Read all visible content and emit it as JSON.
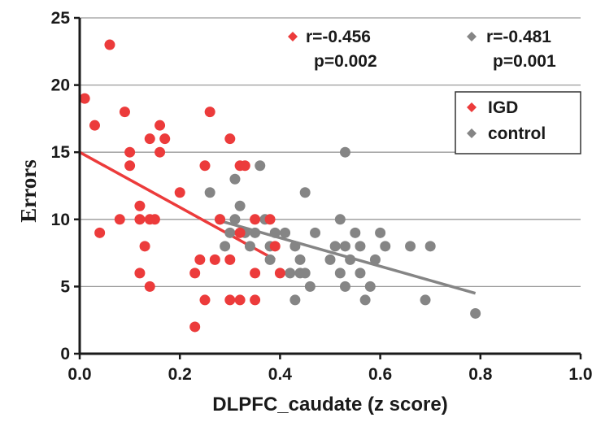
{
  "chart_data": {
    "type": "scatter",
    "xlabel": "DLPFC_caudate (z score)",
    "ylabel": "Errors",
    "xlim": [
      0,
      1.0
    ],
    "ylim": [
      0,
      25
    ],
    "x_ticks": [
      "0.0",
      "0.2",
      "0.4",
      "0.6",
      "0.8",
      "1.0"
    ],
    "y_ticks": [
      "0",
      "5",
      "10",
      "15",
      "20",
      "25"
    ],
    "grid": "horizontal",
    "legend_position": "top-right",
    "series": [
      {
        "name": "IGD",
        "color": "#ec3b3b",
        "points": [
          [
            0.01,
            19
          ],
          [
            0.03,
            17
          ],
          [
            0.04,
            9
          ],
          [
            0.06,
            23
          ],
          [
            0.08,
            10
          ],
          [
            0.09,
            18
          ],
          [
            0.1,
            15
          ],
          [
            0.1,
            14
          ],
          [
            0.12,
            11
          ],
          [
            0.12,
            10
          ],
          [
            0.12,
            6
          ],
          [
            0.13,
            8
          ],
          [
            0.14,
            16
          ],
          [
            0.14,
            10
          ],
          [
            0.14,
            5
          ],
          [
            0.15,
            10
          ],
          [
            0.16,
            17
          ],
          [
            0.16,
            15
          ],
          [
            0.17,
            16
          ],
          [
            0.2,
            12
          ],
          [
            0.23,
            2
          ],
          [
            0.23,
            6
          ],
          [
            0.24,
            7
          ],
          [
            0.25,
            14
          ],
          [
            0.25,
            4
          ],
          [
            0.26,
            18
          ],
          [
            0.27,
            7
          ],
          [
            0.28,
            10
          ],
          [
            0.3,
            16
          ],
          [
            0.3,
            7
          ],
          [
            0.3,
            4
          ],
          [
            0.32,
            4
          ],
          [
            0.32,
            9
          ],
          [
            0.32,
            14
          ],
          [
            0.33,
            14
          ],
          [
            0.35,
            10
          ],
          [
            0.35,
            6
          ],
          [
            0.35,
            4
          ],
          [
            0.38,
            10
          ],
          [
            0.39,
            8
          ],
          [
            0.4,
            6
          ]
        ],
        "fit": [
          [
            0.0,
            15
          ],
          [
            0.39,
            7
          ]
        ]
      },
      {
        "name": "control",
        "color": "#858585",
        "points": [
          [
            0.26,
            12
          ],
          [
            0.28,
            10
          ],
          [
            0.29,
            8
          ],
          [
            0.3,
            9
          ],
          [
            0.31,
            13
          ],
          [
            0.31,
            10
          ],
          [
            0.32,
            11
          ],
          [
            0.33,
            9
          ],
          [
            0.34,
            8
          ],
          [
            0.35,
            9
          ],
          [
            0.36,
            14
          ],
          [
            0.37,
            10
          ],
          [
            0.38,
            8
          ],
          [
            0.38,
            7
          ],
          [
            0.39,
            9
          ],
          [
            0.41,
            9
          ],
          [
            0.42,
            6
          ],
          [
            0.43,
            8
          ],
          [
            0.43,
            4
          ],
          [
            0.44,
            6
          ],
          [
            0.44,
            7
          ],
          [
            0.45,
            12
          ],
          [
            0.45,
            6
          ],
          [
            0.46,
            5
          ],
          [
            0.47,
            9
          ],
          [
            0.5,
            7
          ],
          [
            0.51,
            8
          ],
          [
            0.52,
            10
          ],
          [
            0.52,
            6
          ],
          [
            0.53,
            15
          ],
          [
            0.53,
            8
          ],
          [
            0.53,
            5
          ],
          [
            0.54,
            7
          ],
          [
            0.55,
            9
          ],
          [
            0.56,
            8
          ],
          [
            0.56,
            6
          ],
          [
            0.57,
            4
          ],
          [
            0.58,
            5
          ],
          [
            0.59,
            7
          ],
          [
            0.6,
            9
          ],
          [
            0.61,
            8
          ],
          [
            0.66,
            8
          ],
          [
            0.69,
            4
          ],
          [
            0.7,
            8
          ],
          [
            0.79,
            3
          ]
        ],
        "fit": [
          [
            0.27,
            10
          ],
          [
            0.79,
            4.5
          ]
        ]
      }
    ],
    "annotations": [
      {
        "series": "IGD",
        "r": "r=-0.456",
        "p": "p=0.002"
      },
      {
        "series": "control",
        "r": "r=-0.481",
        "p": "p=0.001"
      }
    ]
  }
}
